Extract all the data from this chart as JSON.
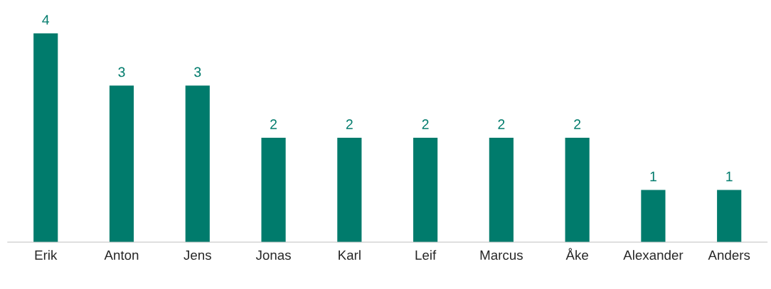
{
  "chart_data": {
    "type": "bar",
    "categories": [
      "Erik",
      "Anton",
      "Jens",
      "Jonas",
      "Karl",
      "Leif",
      "Marcus",
      "Åke",
      "Alexander",
      "Anders"
    ],
    "values": [
      4,
      3,
      3,
      2,
      2,
      2,
      2,
      2,
      1,
      1
    ],
    "color": "#007b6c",
    "data_labels": true,
    "grid": false,
    "legend": false
  }
}
